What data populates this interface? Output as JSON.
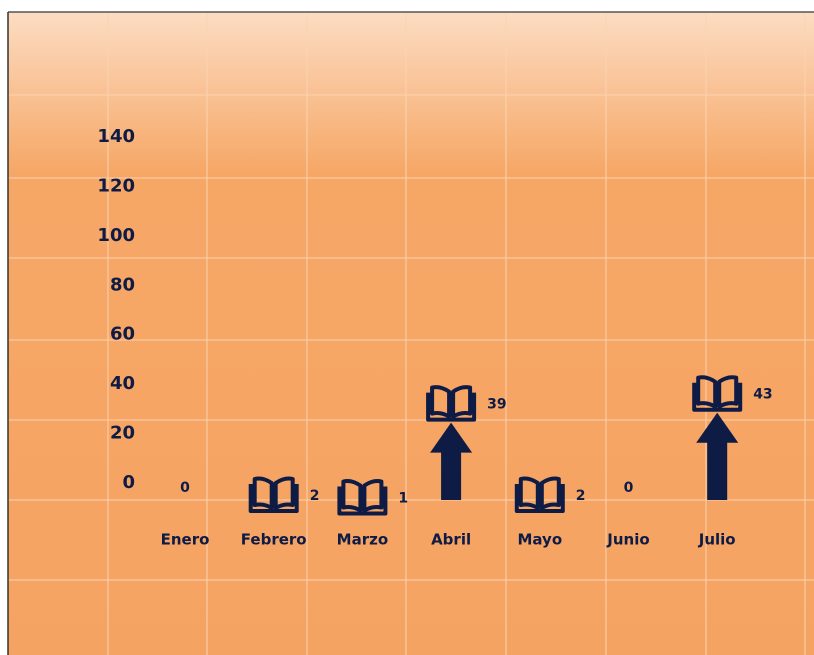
{
  "chart_data": {
    "type": "pictograph",
    "categories": [
      "Enero",
      "Febrero",
      "Marzo",
      "Abril",
      "Mayo",
      "Junio",
      "Julio"
    ],
    "values": [
      0,
      2,
      1,
      39,
      2,
      0,
      43
    ],
    "color": "#0d1b45",
    "ylim": [
      0,
      140
    ],
    "yticks": [
      0,
      20,
      40,
      60,
      80,
      100,
      120,
      140
    ]
  }
}
